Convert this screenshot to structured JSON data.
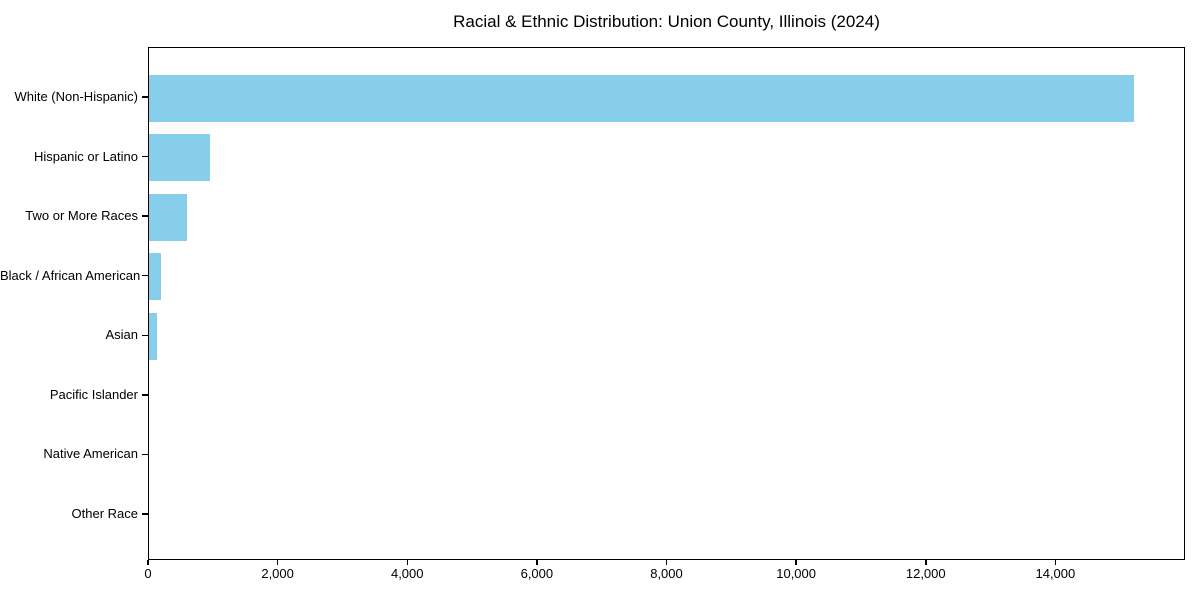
{
  "chart_data": {
    "type": "bar",
    "orientation": "horizontal",
    "title": "Racial & Ethnic Distribution: Union County, Illinois (2024)",
    "categories": [
      "White (Non-Hispanic)",
      "Hispanic or Latino",
      "Two or More Races",
      "Black / African American",
      "Asian",
      "Pacific Islander",
      "Native American",
      "Other Race"
    ],
    "values": [
      15200,
      940,
      590,
      190,
      125,
      0,
      0,
      0
    ],
    "xlabel": "",
    "ylabel": "",
    "xlim": [
      0,
      16000
    ],
    "xticks": [
      0,
      2000,
      4000,
      6000,
      8000,
      10000,
      12000,
      14000
    ],
    "xtick_labels": [
      "0",
      "2,000",
      "4,000",
      "6,000",
      "8,000",
      "10,000",
      "12,000",
      "14,000"
    ],
    "bar_color": "#87CEEB",
    "axis_color": "#000000",
    "text_color": "#000000",
    "background_color": "#FFFFFF",
    "grid": false,
    "legend": "none"
  }
}
